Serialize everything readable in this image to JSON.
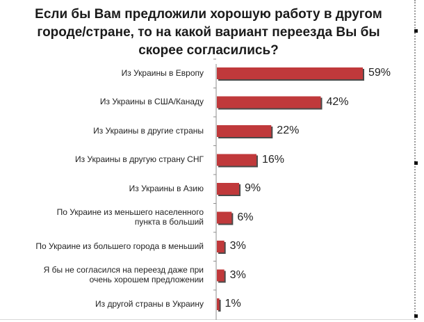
{
  "chart_data": {
    "type": "bar",
    "orientation": "horizontal",
    "title": "Если бы Вам предложили хорошую работу в другом городе/стране, то на какой вариант переезда Вы бы скорее согласились?",
    "title_lines": [
      "Если бы Вам предложили хорошую работу в другом",
      "городе/стране, то на какой вариант переезда Вы бы",
      "скорее согласились?"
    ],
    "categories": [
      [
        "Из Украины в Европу"
      ],
      [
        "Из Украины в США/Канаду"
      ],
      [
        "Из Украины в другие страны"
      ],
      [
        "Из Украины в другую страну СНГ"
      ],
      [
        "Из Украины в  Азию"
      ],
      [
        "По Украине из меньшего населенного",
        "пункта в больший"
      ],
      [
        "По Украине из большего города в меньший"
      ],
      [
        "Я бы не согласился на переезд даже при",
        "очень хорошем предложении"
      ],
      [
        "Из другой страны в Украину"
      ]
    ],
    "values": [
      59,
      42,
      22,
      16,
      9,
      6,
      3,
      3,
      1
    ],
    "value_labels": [
      "59%",
      "42%",
      "22%",
      "16%",
      "9%",
      "6%",
      "3%",
      "3%",
      "1%"
    ],
    "unit": "%",
    "bar_color": "#c0393b",
    "bar_shadow_color": "#4a4a4a",
    "axis_color": "#8c8c8c",
    "xlim": [
      0,
      59
    ],
    "grid": false,
    "legend": "none"
  }
}
